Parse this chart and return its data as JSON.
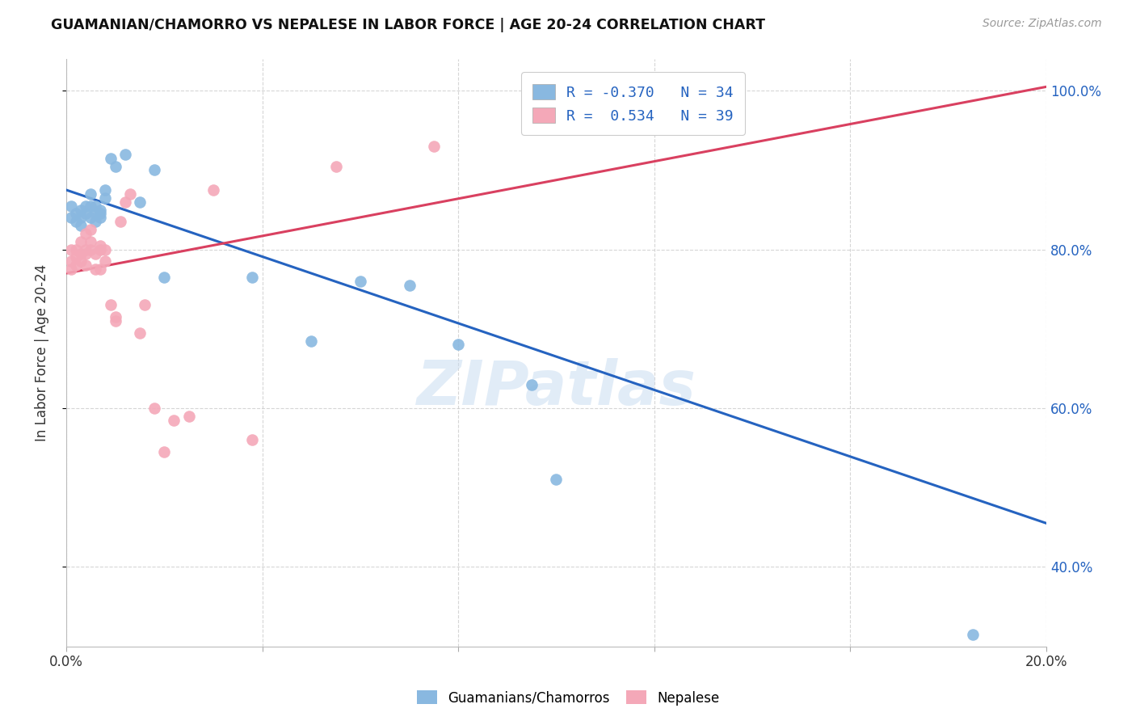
{
  "title": "GUAMANIAN/CHAMORRO VS NEPALESE IN LABOR FORCE | AGE 20-24 CORRELATION CHART",
  "source": "Source: ZipAtlas.com",
  "ylabel": "In Labor Force | Age 20-24",
  "xlim": [
    0.0,
    0.2
  ],
  "ylim": [
    0.3,
    1.04
  ],
  "xticks": [
    0.0,
    0.04,
    0.08,
    0.12,
    0.16,
    0.2
  ],
  "xtick_labels": [
    "0.0%",
    "",
    "",
    "",
    "",
    "20.0%"
  ],
  "yticks": [
    0.4,
    0.6,
    0.8,
    1.0
  ],
  "ytick_labels_right": [
    "40.0%",
    "60.0%",
    "80.0%",
    "100.0%"
  ],
  "blue_R": -0.37,
  "blue_N": 34,
  "pink_R": 0.534,
  "pink_N": 39,
  "blue_label": "Guamanians/Chamorros",
  "pink_label": "Nepalese",
  "blue_color": "#89b8e0",
  "pink_color": "#f4a8b8",
  "blue_line_color": "#2563c0",
  "pink_line_color": "#d94060",
  "watermark": "ZIPatlas",
  "blue_trend_x": [
    0.0,
    0.2
  ],
  "blue_trend_y": [
    0.875,
    0.455
  ],
  "pink_trend_x": [
    0.0,
    0.2
  ],
  "pink_trend_y": [
    0.77,
    1.005
  ],
  "blue_x": [
    0.001,
    0.001,
    0.002,
    0.002,
    0.003,
    0.003,
    0.003,
    0.004,
    0.004,
    0.005,
    0.005,
    0.005,
    0.006,
    0.006,
    0.006,
    0.007,
    0.007,
    0.007,
    0.008,
    0.008,
    0.009,
    0.01,
    0.012,
    0.015,
    0.018,
    0.02,
    0.038,
    0.05,
    0.06,
    0.07,
    0.08,
    0.095,
    0.1,
    0.185
  ],
  "blue_y": [
    0.84,
    0.855,
    0.835,
    0.845,
    0.84,
    0.85,
    0.83,
    0.855,
    0.845,
    0.84,
    0.855,
    0.87,
    0.845,
    0.855,
    0.835,
    0.85,
    0.84,
    0.845,
    0.865,
    0.875,
    0.915,
    0.905,
    0.92,
    0.86,
    0.9,
    0.765,
    0.765,
    0.685,
    0.76,
    0.755,
    0.68,
    0.63,
    0.51,
    0.315
  ],
  "pink_x": [
    0.001,
    0.001,
    0.001,
    0.002,
    0.002,
    0.002,
    0.003,
    0.003,
    0.003,
    0.004,
    0.004,
    0.004,
    0.004,
    0.005,
    0.005,
    0.005,
    0.006,
    0.006,
    0.007,
    0.007,
    0.007,
    0.008,
    0.008,
    0.009,
    0.01,
    0.01,
    0.011,
    0.012,
    0.013,
    0.015,
    0.016,
    0.018,
    0.02,
    0.022,
    0.025,
    0.03,
    0.038,
    0.055,
    0.075
  ],
  "pink_y": [
    0.775,
    0.785,
    0.8,
    0.78,
    0.79,
    0.8,
    0.785,
    0.795,
    0.81,
    0.78,
    0.795,
    0.82,
    0.8,
    0.8,
    0.81,
    0.825,
    0.775,
    0.795,
    0.805,
    0.775,
    0.8,
    0.785,
    0.8,
    0.73,
    0.71,
    0.715,
    0.835,
    0.86,
    0.87,
    0.695,
    0.73,
    0.6,
    0.545,
    0.585,
    0.59,
    0.875,
    0.56,
    0.905,
    0.93
  ]
}
